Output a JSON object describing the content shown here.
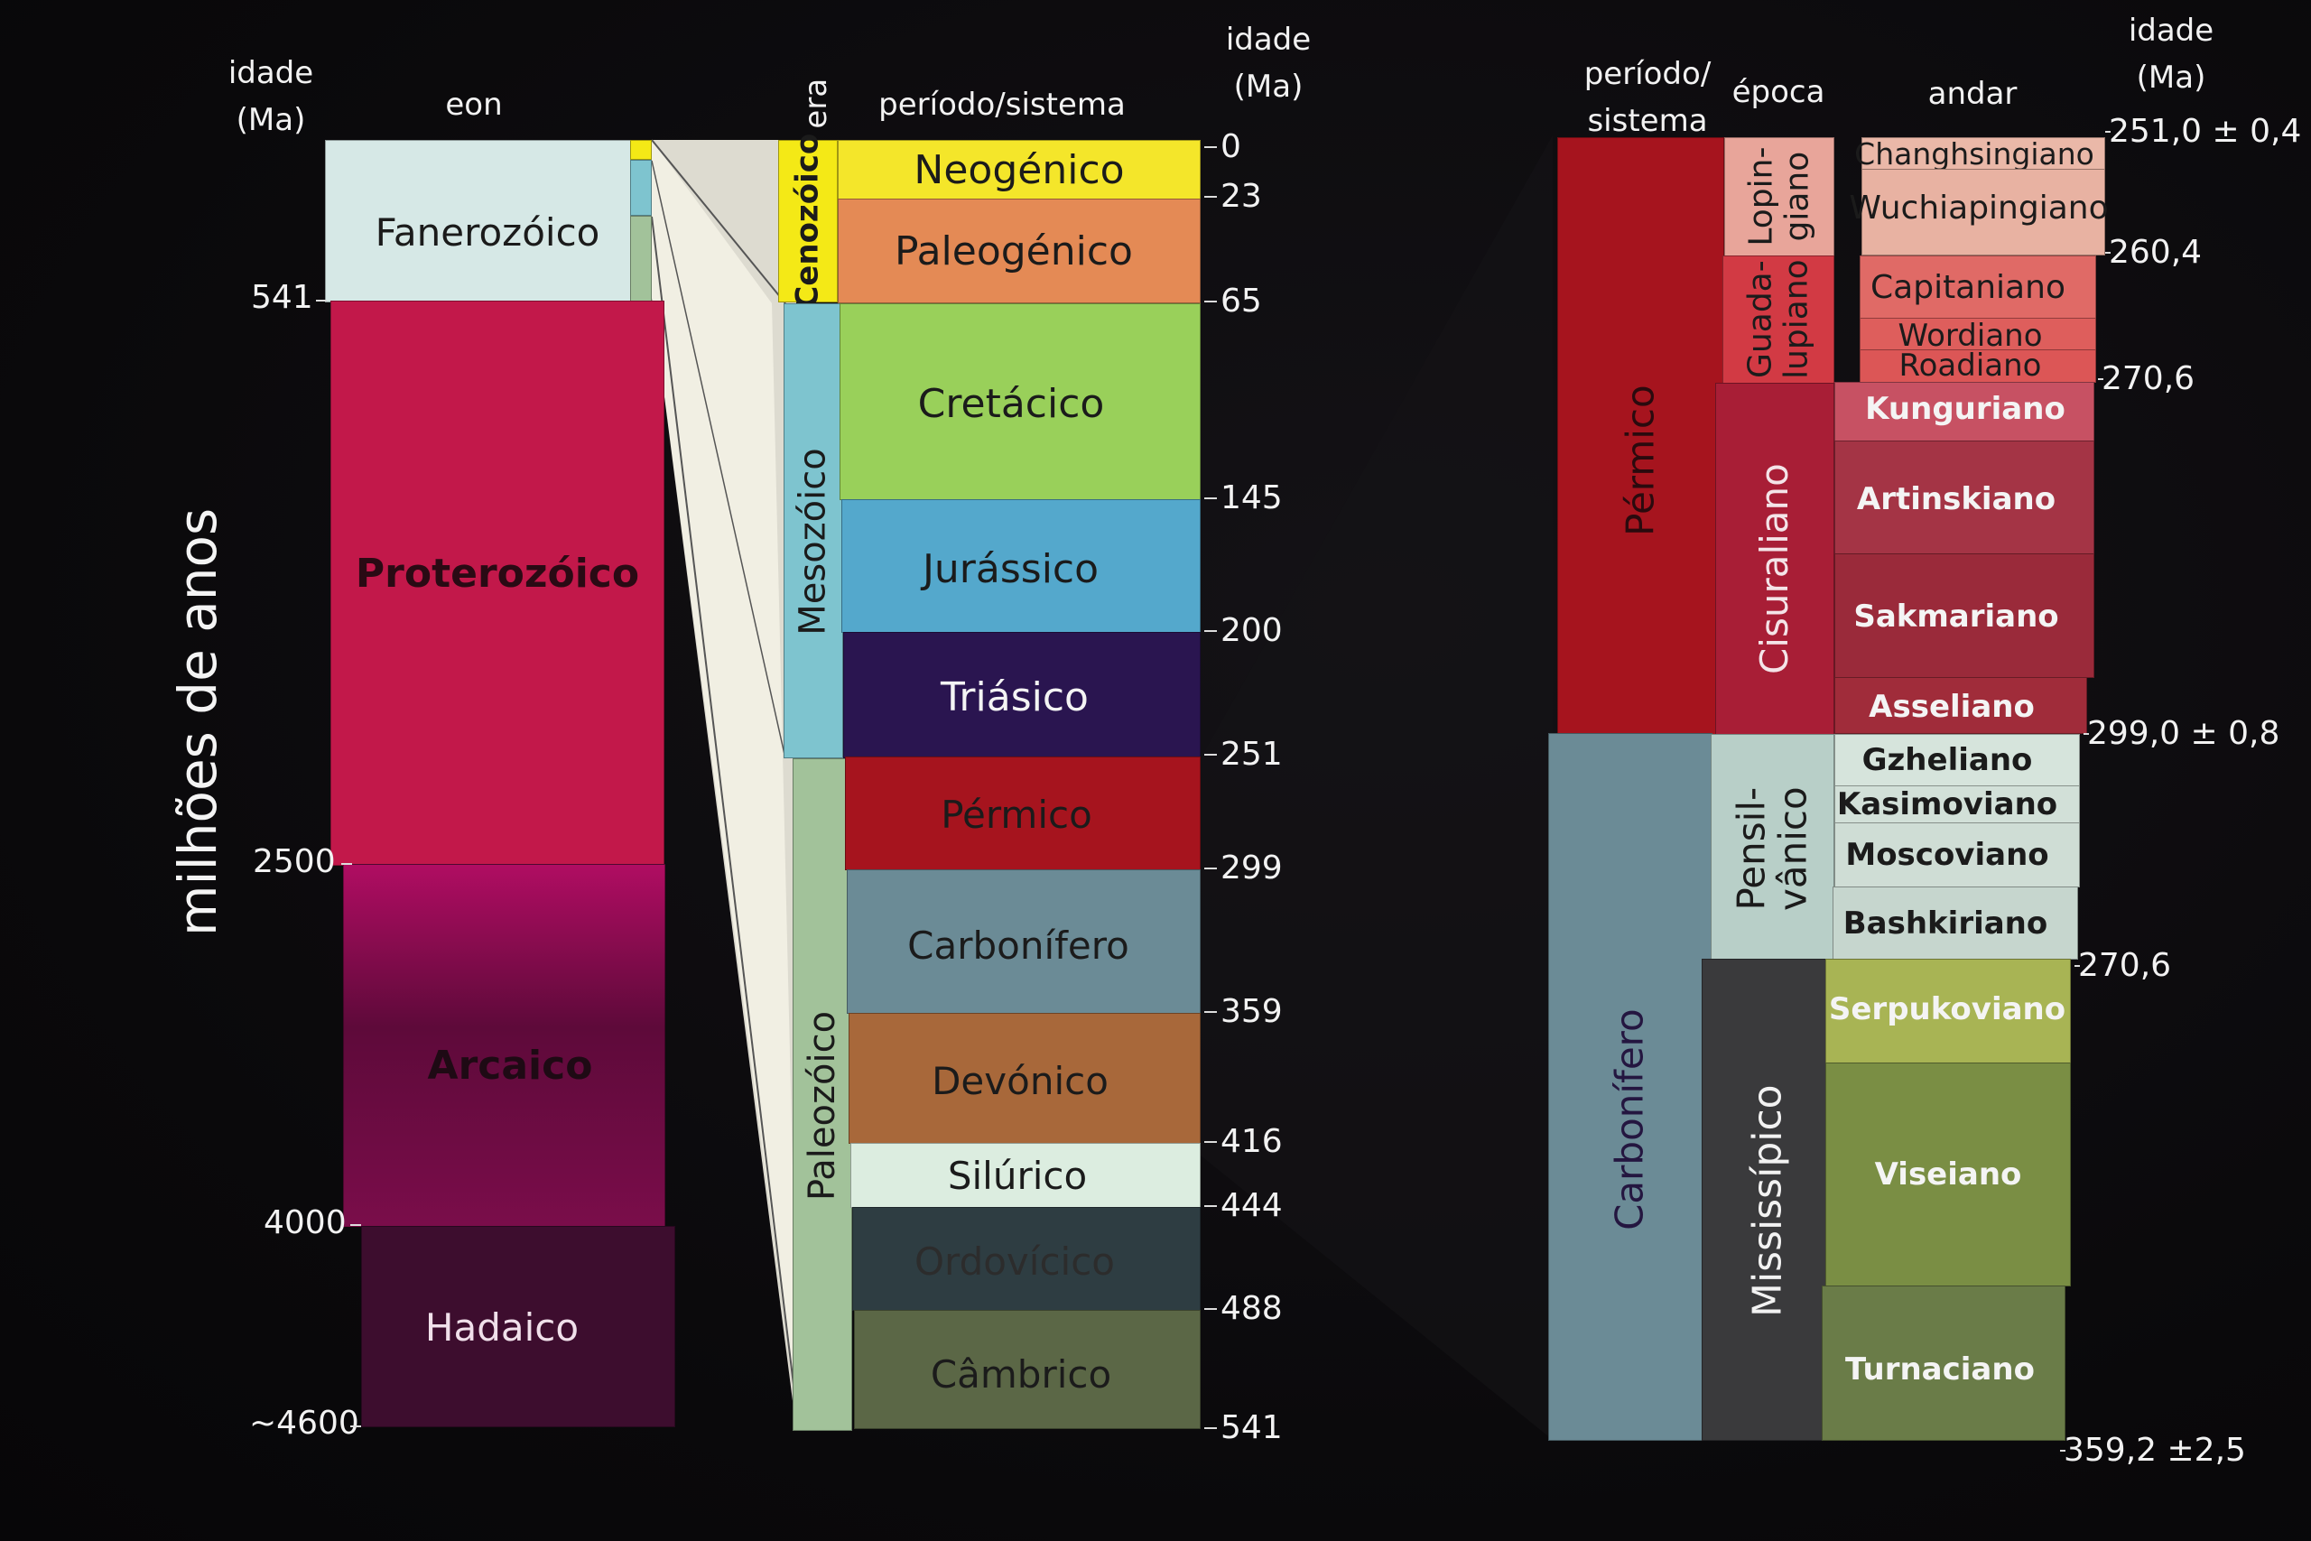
{
  "axis_title": "milhões de anos",
  "headers": {
    "left_age": "idade\n(Ma)",
    "eon": "eon",
    "era": "era",
    "period_system": "período/sistema",
    "mid_age": "idade\n(Ma)",
    "right_period": "período/\nsistema",
    "epoch": "época",
    "stage": "andar",
    "right_age": "idade\n(Ma)"
  },
  "eons": [
    {
      "name": "Fanerozóico",
      "color": "#d6e8e6",
      "text": "#1b1b1b"
    },
    {
      "name": "Proterozóico",
      "color": "#c2184a",
      "text": "#2a0a14"
    },
    {
      "name": "Arcaico",
      "color": "#b00d62",
      "text": "#1e0a14"
    },
    {
      "name": "Hadaico",
      "color": "#3d0d2e",
      "text": "#f0e0ea"
    }
  ],
  "eon_ticks": [
    "541",
    "2500",
    "4000",
    "~4600"
  ],
  "eras": [
    {
      "name": "Cenozóico",
      "color": "#f4e916"
    },
    {
      "name": "Mesozóico",
      "color": "#7ec4cf"
    },
    {
      "name": "Paleozóico",
      "color": "#a2c29a"
    }
  ],
  "periods": [
    {
      "name": "Neogénico",
      "color": "#f4e62a",
      "text": "#1b1b1b"
    },
    {
      "name": "Paleogénico",
      "color": "#e48a55",
      "text": "#1b1b1b"
    },
    {
      "name": "Cretácico",
      "color": "#99d05a",
      "text": "#1b1b1b"
    },
    {
      "name": "Jurássico",
      "color": "#54a8cc",
      "text": "#1b1b1b"
    },
    {
      "name": "Triásico",
      "color": "#2a1550",
      "text": "#f4f4f4"
    },
    {
      "name": "Pérmico",
      "color": "#a6141e",
      "text": "#1b1b1b"
    },
    {
      "name": "Carbonífero",
      "color": "#6b8b96",
      "text": "#1b1b1b"
    },
    {
      "name": "Devónico",
      "color": "#a8683a",
      "text": "#1b1b1b"
    },
    {
      "name": "Silúrico",
      "color": "#dcede0",
      "text": "#1b1b1b"
    },
    {
      "name": "Ordovícico",
      "color": "#2e3d42",
      "text": "#2c2c2c"
    },
    {
      "name": "Câmbrico",
      "color": "#5b6746",
      "text": "#1b1b1b"
    }
  ],
  "period_ticks": [
    "0",
    "23",
    "65",
    "145",
    "200",
    "251",
    "299",
    "359",
    "416",
    "444",
    "488",
    "541"
  ],
  "detail_periods": [
    {
      "name": "Pérmico",
      "color": "#a6141e"
    },
    {
      "name": "Carbonífero",
      "color": "#6b8b96"
    }
  ],
  "epochs": [
    {
      "name": "Lopin-\ngiano",
      "color": "#e8a59a"
    },
    {
      "name": "Guada-\nlupiano",
      "color": "#d23a44"
    },
    {
      "name": "Cisuraliano",
      "color": "#a81e36"
    },
    {
      "name": "Pensil-\nvânico",
      "color": "#b8cfc8"
    },
    {
      "name": "Mississípico",
      "color": "#3a3a3c"
    }
  ],
  "stages": [
    {
      "name": "Changhsingiano",
      "color": "#eab8a8"
    },
    {
      "name": "Wuchiapingiano",
      "color": "#e8b2a2"
    },
    {
      "name": "Capitaniano",
      "color": "#e06a66"
    },
    {
      "name": "Wordiano",
      "color": "#de5e5c"
    },
    {
      "name": "Roadiano",
      "color": "#dc5656"
    },
    {
      "name": "Kunguriano",
      "color": "#c75163"
    },
    {
      "name": "Artinskiano",
      "color": "#a43445"
    },
    {
      "name": "Sakmariano",
      "color": "#9a2a3a"
    },
    {
      "name": "Asseliano",
      "color": "#a02c3a"
    },
    {
      "name": "Gzheliano",
      "color": "#d6e4dc"
    },
    {
      "name": "Kasimoviano",
      "color": "#d2e0d8"
    },
    {
      "name": "Moscoviano",
      "color": "#cfddd5"
    },
    {
      "name": "Bashkiriano",
      "color": "#c6d6ce"
    },
    {
      "name": "Serpukoviano",
      "color": "#a8b454"
    },
    {
      "name": "Viseiano",
      "color": "#7a8e44"
    },
    {
      "name": "Turnaciano",
      "color": "#6a7c48"
    }
  ],
  "stage_ticks": [
    "251,0 ± 0,4",
    "260,4",
    "270,6",
    "299,0 ± 0,8",
    "270,6",
    "359,2 ±2,5"
  ]
}
